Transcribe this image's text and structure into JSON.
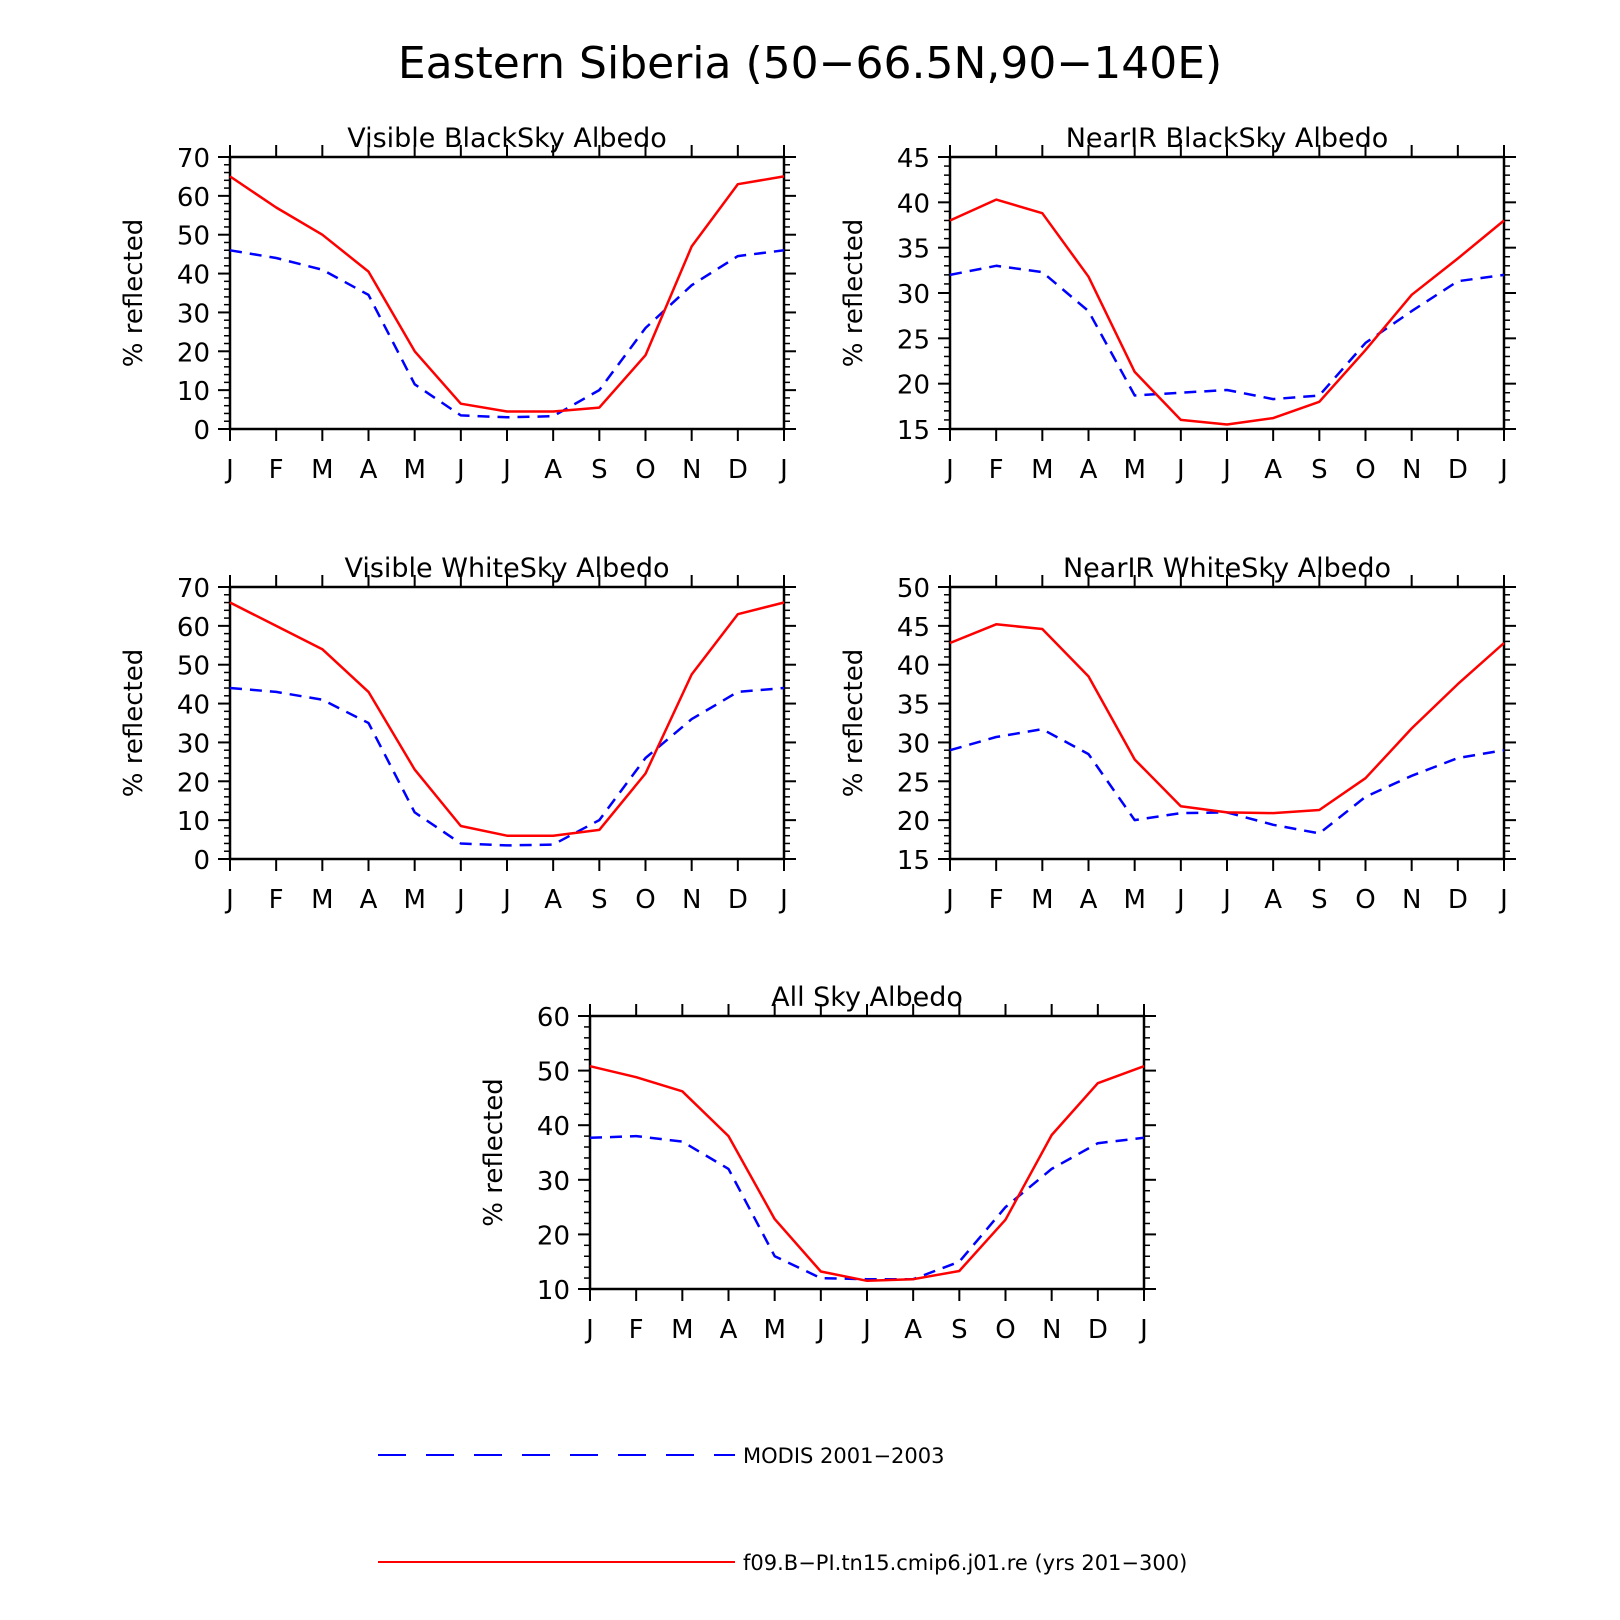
{
  "title": "Eastern Siberia (50−66.5N,90−140E)",
  "legend": {
    "items": [
      {
        "label": "MODIS 2001−2003",
        "color": "#0000ff",
        "dash": true
      },
      {
        "label": "f09.B−PI.tn15.cmip6.j01.re (yrs 201−300)",
        "color": "#ff0000",
        "dash": false
      }
    ]
  },
  "chart_data": [
    {
      "type": "line",
      "title": "Visible BlackSky Albedo",
      "ylabel": "% reflected",
      "categories": [
        "J",
        "F",
        "M",
        "A",
        "M",
        "J",
        "J",
        "A",
        "S",
        "O",
        "N",
        "D",
        "J"
      ],
      "ylim": [
        0,
        70
      ],
      "yticks": [
        0,
        10,
        20,
        30,
        40,
        50,
        60,
        70
      ],
      "series": [
        {
          "name": "MODIS 2001−2003",
          "color": "#0000ff",
          "dash": true,
          "values": [
            46,
            44,
            41,
            34.5,
            11.5,
            3.5,
            3,
            3.3,
            10,
            26,
            37,
            44.5,
            46
          ]
        },
        {
          "name": "f09.B−PI.tn15.cmip6.j01.re (yrs 201−300)",
          "color": "#ff0000",
          "dash": false,
          "values": [
            65,
            57,
            50,
            40.5,
            20,
            6.5,
            4.5,
            4.5,
            5.5,
            19,
            47,
            63,
            65
          ]
        }
      ]
    },
    {
      "type": "line",
      "title": "NearIR BlackSky Albedo",
      "ylabel": "% reflected",
      "categories": [
        "J",
        "F",
        "M",
        "A",
        "M",
        "J",
        "J",
        "A",
        "S",
        "O",
        "N",
        "D",
        "J"
      ],
      "ylim": [
        15,
        45
      ],
      "yticks": [
        15,
        20,
        25,
        30,
        35,
        40,
        45
      ],
      "series": [
        {
          "name": "MODIS 2001−2003",
          "color": "#0000ff",
          "dash": true,
          "values": [
            32,
            33,
            32.3,
            28,
            18.7,
            19,
            19.3,
            18.3,
            18.7,
            24.5,
            28,
            31.3,
            32
          ]
        },
        {
          "name": "f09.B−PI.tn15.cmip6.j01.re (yrs 201−300)",
          "color": "#ff0000",
          "dash": false,
          "values": [
            38,
            40.3,
            38.8,
            31.8,
            21.3,
            16,
            15.5,
            16.2,
            18,
            23.7,
            29.8,
            33.8,
            38
          ]
        }
      ]
    },
    {
      "type": "line",
      "title": "Visible WhiteSky Albedo",
      "ylabel": "% reflected",
      "categories": [
        "J",
        "F",
        "M",
        "A",
        "M",
        "J",
        "J",
        "A",
        "S",
        "O",
        "N",
        "D",
        "J"
      ],
      "ylim": [
        0,
        70
      ],
      "yticks": [
        0,
        10,
        20,
        30,
        40,
        50,
        60,
        70
      ],
      "series": [
        {
          "name": "MODIS 2001−2003",
          "color": "#0000ff",
          "dash": true,
          "values": [
            44,
            43,
            41,
            35,
            12,
            4,
            3.5,
            3.7,
            10,
            26,
            36,
            43,
            44
          ]
        },
        {
          "name": "f09.B−PI.tn15.cmip6.j01.re (yrs 201−300)",
          "color": "#ff0000",
          "dash": false,
          "values": [
            66,
            60,
            54,
            43,
            23,
            8.5,
            6,
            6,
            7.5,
            22,
            47.5,
            63,
            66
          ]
        }
      ]
    },
    {
      "type": "line",
      "title": "NearIR WhiteSky Albedo",
      "ylabel": "% reflected",
      "categories": [
        "J",
        "F",
        "M",
        "A",
        "M",
        "J",
        "J",
        "A",
        "S",
        "O",
        "N",
        "D",
        "J"
      ],
      "ylim": [
        15,
        50
      ],
      "yticks": [
        15,
        20,
        25,
        30,
        35,
        40,
        45,
        50
      ],
      "series": [
        {
          "name": "MODIS 2001−2003",
          "color": "#0000ff",
          "dash": true,
          "values": [
            29,
            30.7,
            31.7,
            28.5,
            20,
            20.9,
            21,
            19.4,
            18.3,
            23,
            25.7,
            28,
            29
          ]
        },
        {
          "name": "f09.B−PI.tn15.cmip6.j01.re (yrs 201−300)",
          "color": "#ff0000",
          "dash": false,
          "values": [
            42.8,
            45.2,
            44.6,
            38.5,
            27.8,
            21.8,
            21,
            20.9,
            21.3,
            25.4,
            31.8,
            37.5,
            42.8
          ]
        }
      ]
    },
    {
      "type": "line",
      "title": "All Sky Albedo",
      "ylabel": "% reflected",
      "categories": [
        "J",
        "F",
        "M",
        "A",
        "M",
        "J",
        "J",
        "A",
        "S",
        "O",
        "N",
        "D",
        "J"
      ],
      "ylim": [
        10,
        60
      ],
      "yticks": [
        10,
        20,
        30,
        40,
        50,
        60
      ],
      "series": [
        {
          "name": "MODIS 2001−2003",
          "color": "#0000ff",
          "dash": true,
          "values": [
            37.7,
            38,
            37,
            32,
            16,
            12,
            11.8,
            11.8,
            15,
            25,
            32,
            36.7,
            37.7
          ]
        },
        {
          "name": "f09.B−PI.tn15.cmip6.j01.re (yrs 201−300)",
          "color": "#ff0000",
          "dash": false,
          "values": [
            50.8,
            48.8,
            46.2,
            38,
            22.8,
            13.2,
            11.5,
            11.8,
            13.3,
            22.7,
            38.2,
            47.7,
            50.8
          ]
        }
      ]
    }
  ]
}
